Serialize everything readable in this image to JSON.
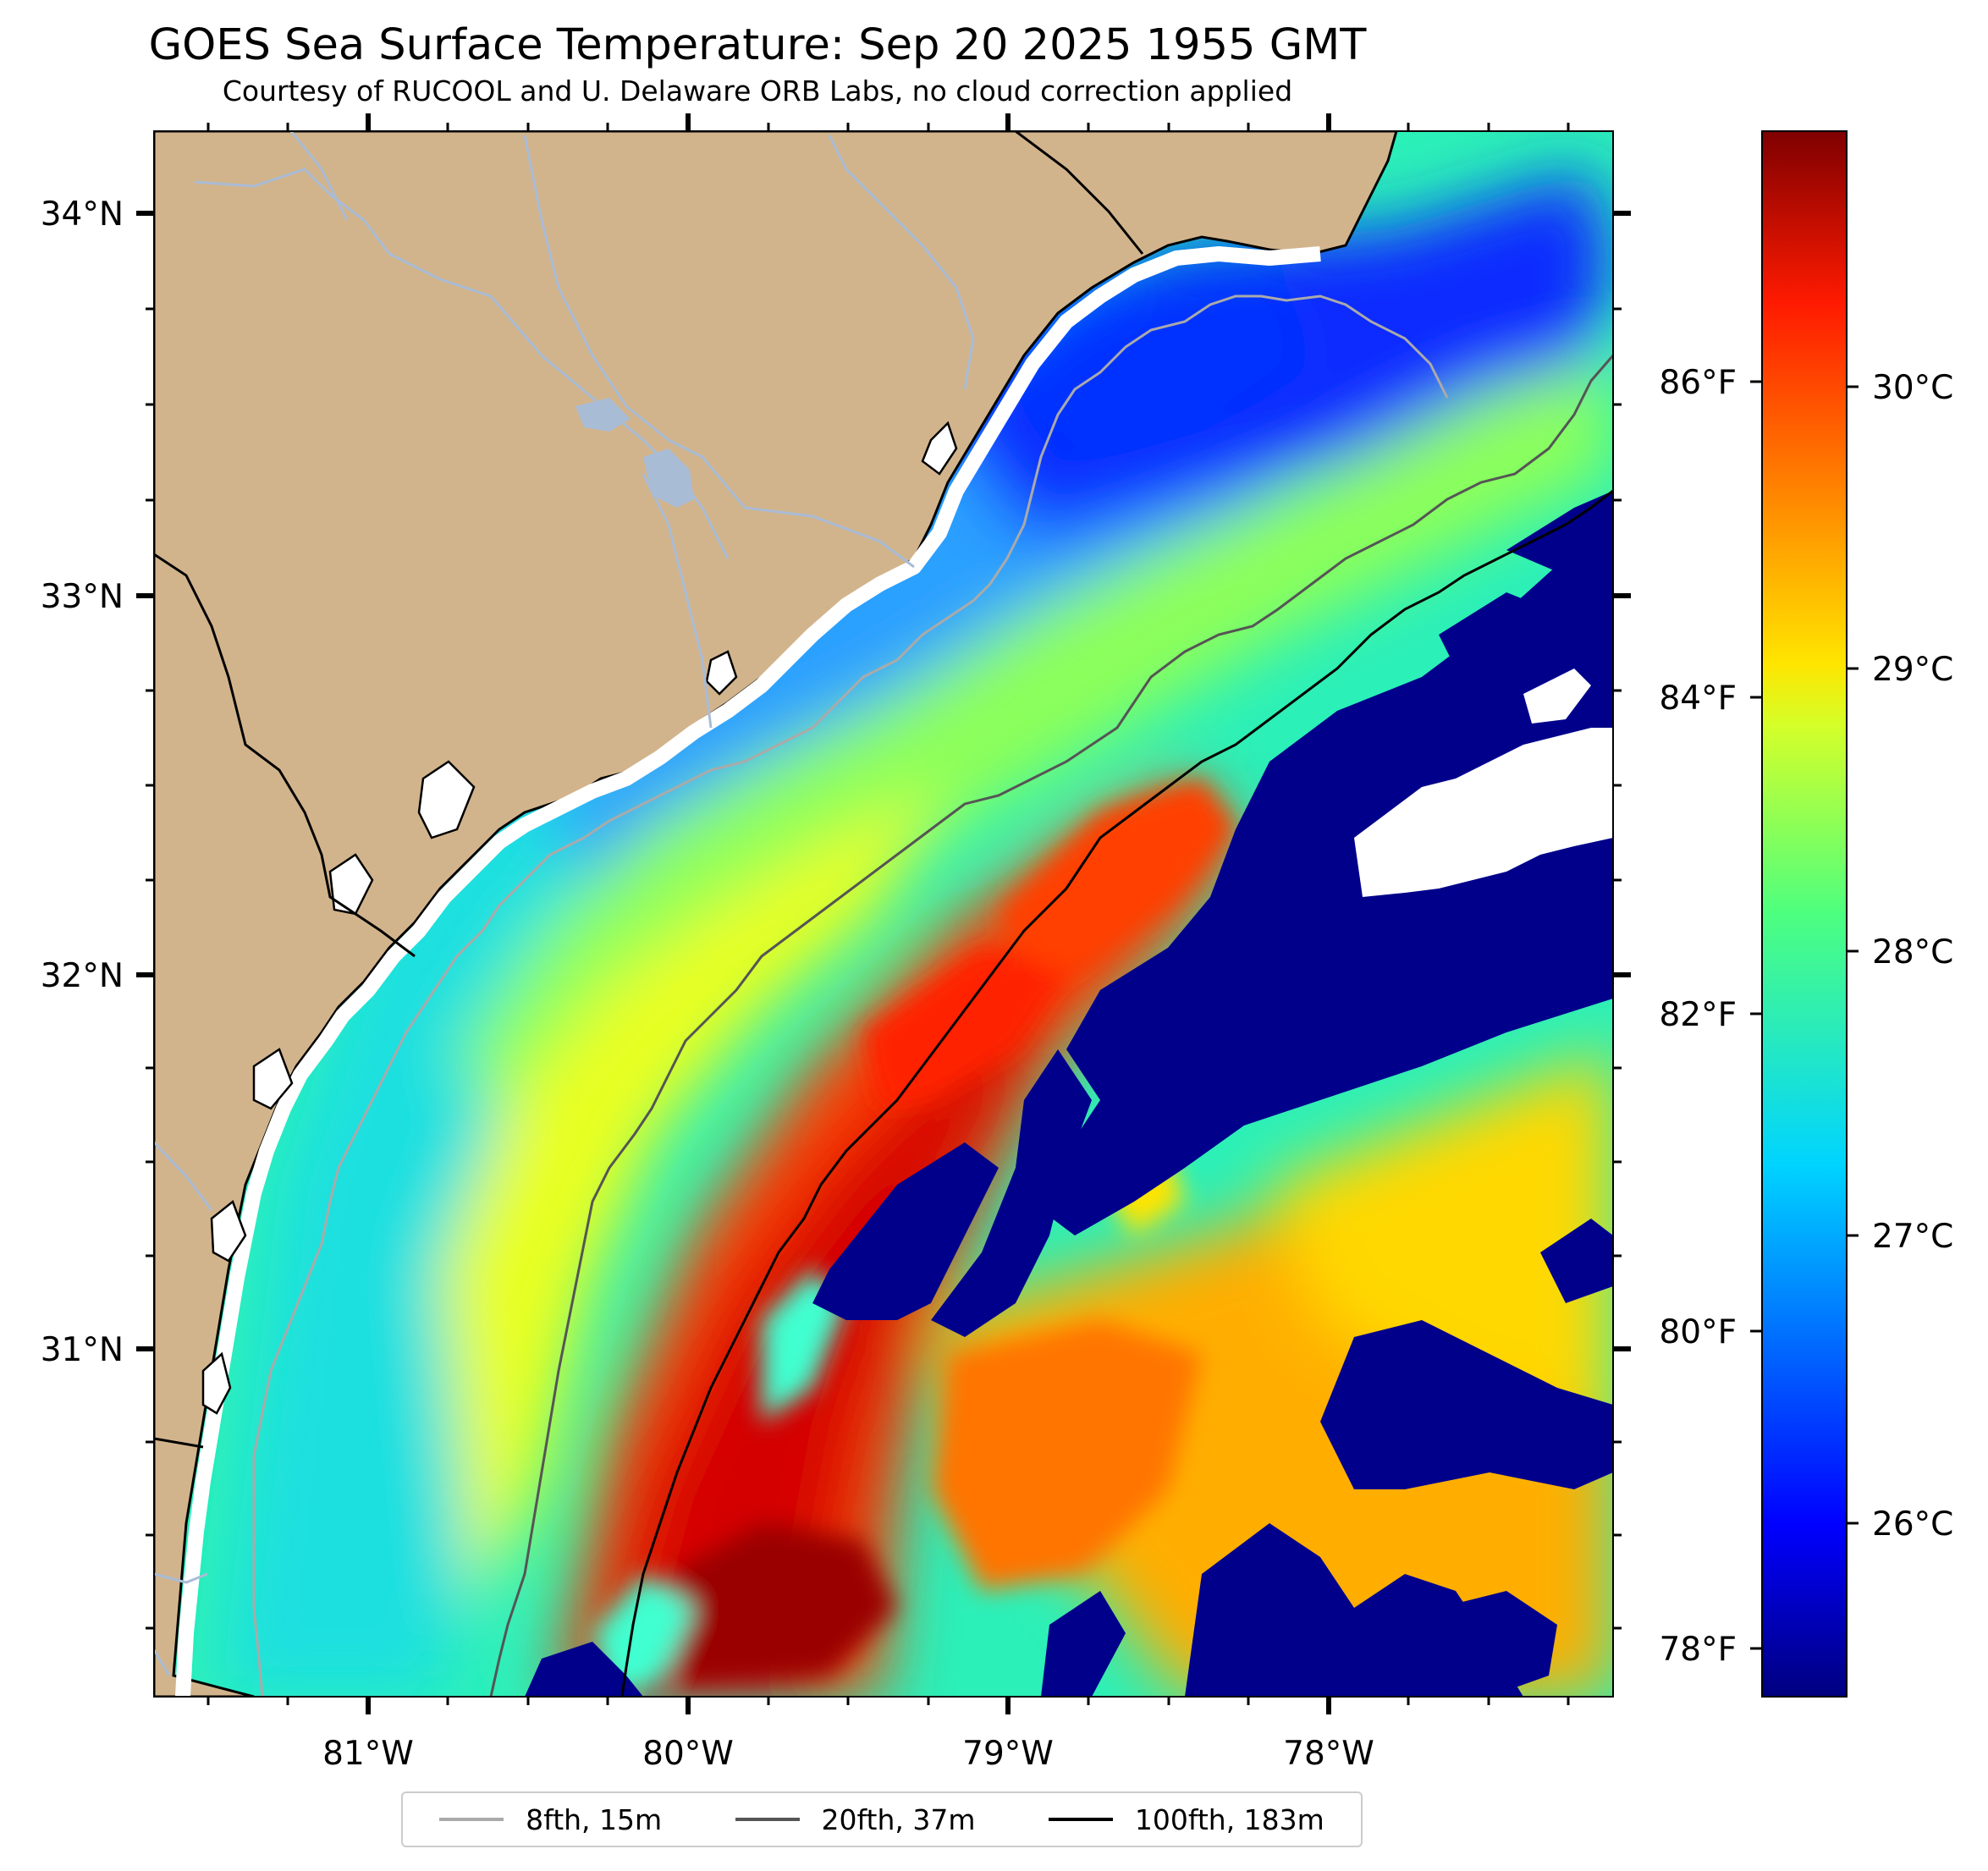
{
  "title": "GOES Sea Surface Temperature: Sep 20 2025 1955 GMT",
  "subtitle": "Courtesy of RUCOOL and U. Delaware ORB Labs, no cloud correction applied",
  "colors": {
    "land": "#d2b48c",
    "cloud_mask": "#00008b",
    "no_data": "#ffffff",
    "rivers": "#a9bcd6",
    "isobath_8fth": "#aaaaaa",
    "isobath_20fth": "#555555",
    "isobath_100fth": "#000000"
  },
  "map": {
    "lon_ticks": [
      "81°W",
      "80°W",
      "79°W",
      "78°W"
    ],
    "lat_ticks": [
      "34°N",
      "33°N",
      "32°N",
      "31°N"
    ]
  },
  "colorbar": {
    "colormap": "jet",
    "celsius_ticks": [
      "30°C",
      "29°C",
      "28°C",
      "27°C",
      "26°C"
    ],
    "fahrenheit_ticks": [
      "86°F",
      "84°F",
      "82°F",
      "80°F",
      "78°F"
    ]
  },
  "legend": [
    {
      "label": "8fth, 15m",
      "color": "#aaaaaa"
    },
    {
      "label": "20fth, 37m",
      "color": "#555555"
    },
    {
      "label": "100fth, 183m",
      "color": "#000000"
    }
  ]
}
